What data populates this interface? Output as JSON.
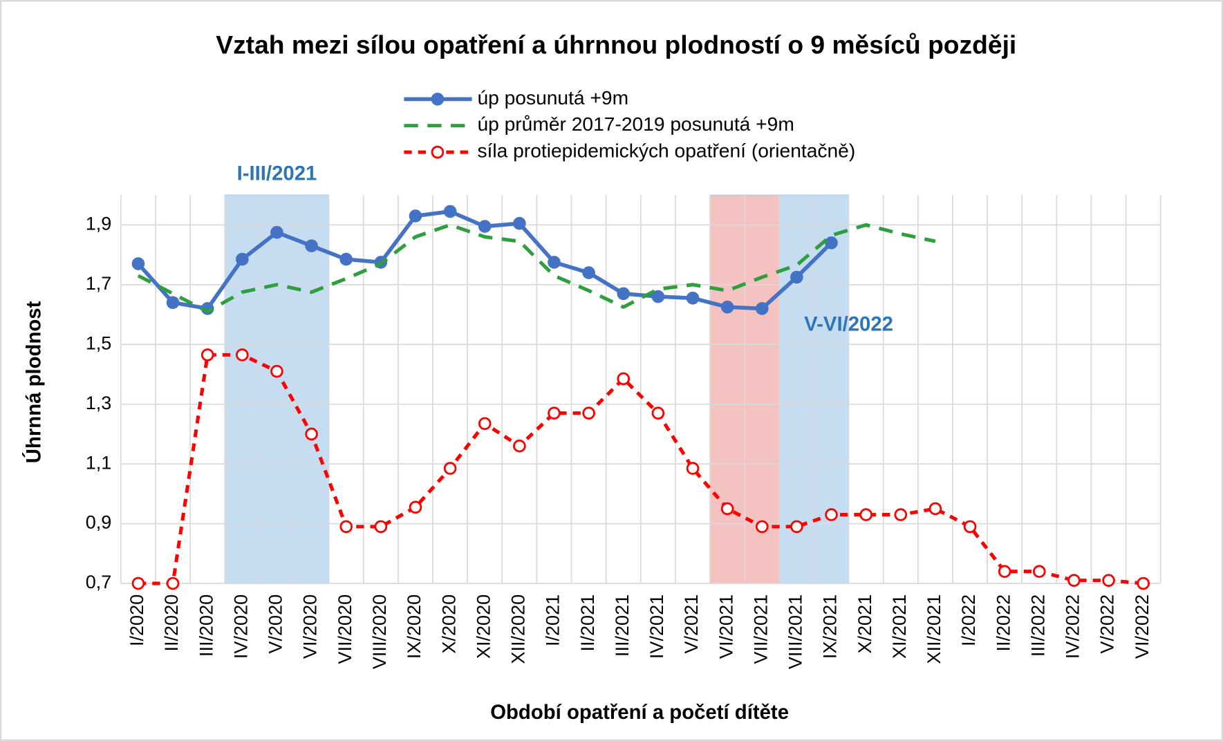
{
  "chart_data": {
    "type": "line",
    "title": "Vztah mezi sílou opatření a úhrnnou plodností o 9 měsíců později",
    "y_label": "Úhrnná plodnost",
    "x_label": "Období opatření a početí dítěte",
    "categories": [
      "I/2020",
      "II/2020",
      "III/2020",
      "IV/2020",
      "V/2020",
      "VI/2020",
      "VII/2020",
      "VIII/2020",
      "IX/2020",
      "X/2020",
      "XI/2020",
      "XII/2020",
      "I/2021",
      "II/2021",
      "III/2021",
      "IV/2021",
      "V/2021",
      "VI/2021",
      "VII/2021",
      "VIII/2021",
      "IX/2021",
      "X/2021",
      "XI/2021",
      "XII/2021",
      "I/2022",
      "II/2022",
      "III/2022",
      "IV/2022",
      "V/2022",
      "VI/2022"
    ],
    "ylim": [
      0.7,
      2.0
    ],
    "yticks": [
      {
        "value": 0.7,
        "label": "0,7"
      },
      {
        "value": 0.9,
        "label": "0,9"
      },
      {
        "value": 1.1,
        "label": "1,1"
      },
      {
        "value": 1.3,
        "label": "1,3"
      },
      {
        "value": 1.5,
        "label": "1,5"
      },
      {
        "value": 1.7,
        "label": "1,7"
      },
      {
        "value": 1.9,
        "label": "1,9"
      }
    ],
    "grid": true,
    "series": [
      {
        "name": "úp posunutá +9m",
        "color": "#4472c4",
        "style": "solid",
        "marker": "filled",
        "values": [
          1.77,
          1.64,
          1.62,
          1.785,
          1.875,
          1.83,
          1.785,
          1.775,
          1.93,
          1.945,
          1.895,
          1.905,
          1.775,
          1.74,
          1.67,
          1.66,
          1.655,
          1.625,
          1.62,
          1.725,
          1.84,
          null,
          null,
          null,
          null,
          null,
          null,
          null,
          null,
          null
        ]
      },
      {
        "name": "úp průměr 2017-2019 posunutá +9m",
        "color": "#2e9e3e",
        "style": "dashed",
        "marker": "none",
        "values": [
          1.73,
          1.67,
          1.61,
          1.675,
          1.7,
          1.675,
          1.72,
          1.77,
          1.86,
          1.9,
          1.86,
          1.845,
          1.73,
          1.68,
          1.625,
          1.685,
          1.7,
          1.68,
          1.725,
          1.765,
          1.865,
          1.9,
          1.87,
          1.845,
          null,
          null,
          null,
          null,
          null,
          null
        ]
      },
      {
        "name": "síla protiepidemických opatření (orientačně)",
        "color": "#ff0000",
        "style": "dotted",
        "marker": "open",
        "values": [
          0.7,
          0.7,
          1.465,
          1.465,
          1.41,
          1.2,
          0.89,
          0.89,
          0.955,
          1.085,
          1.235,
          1.16,
          1.27,
          1.27,
          1.385,
          1.27,
          1.085,
          0.95,
          0.89,
          0.89,
          0.93,
          0.93,
          0.93,
          0.95,
          0.89,
          0.74,
          0.74,
          0.71,
          0.71,
          0.7
        ]
      }
    ],
    "bands": [
      {
        "from": "IV/2020",
        "to": "VI/2020",
        "color": "#bdd7ee",
        "label": "I-III/2021"
      },
      {
        "from": "VI/2021",
        "to": "VII/2021",
        "color": "#f4b8b8"
      },
      {
        "from": "VIII/2021",
        "to": "IX/2021",
        "color": "#bdd7ee",
        "label": "V-VI/2022"
      }
    ]
  }
}
